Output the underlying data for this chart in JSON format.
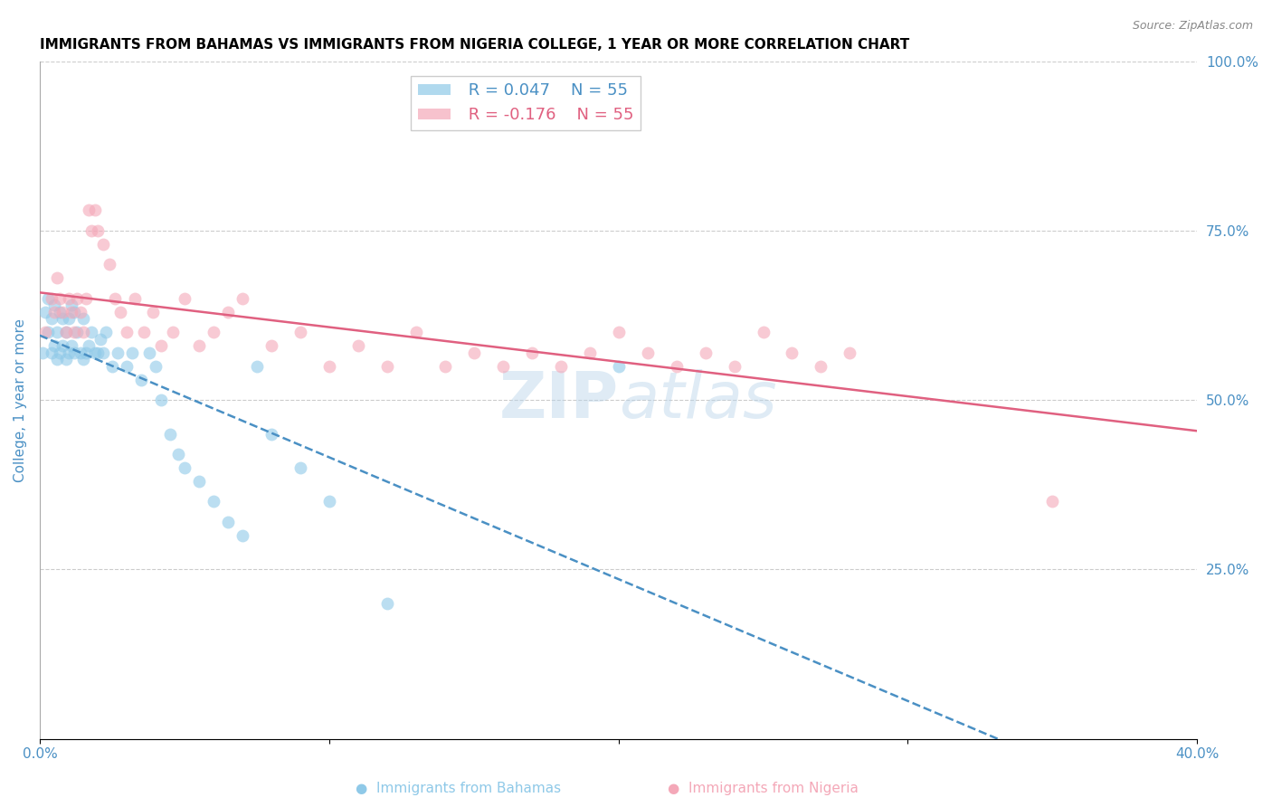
{
  "title": "IMMIGRANTS FROM BAHAMAS VS IMMIGRANTS FROM NIGERIA COLLEGE, 1 YEAR OR MORE CORRELATION CHART",
  "source": "Source: ZipAtlas.com",
  "ylabel": "College, 1 year or more",
  "xlim": [
    0.0,
    0.4
  ],
  "ylim": [
    0.0,
    1.0
  ],
  "xticks": [
    0.0,
    0.1,
    0.2,
    0.3,
    0.4
  ],
  "xticklabels": [
    "0.0%",
    "",
    "",
    "",
    "40.0%"
  ],
  "yticks_right": [
    0.0,
    0.25,
    0.5,
    0.75,
    1.0
  ],
  "ytick_right_labels": [
    "",
    "25.0%",
    "50.0%",
    "75.0%",
    "100.0%"
  ],
  "legend_r1": "R = 0.047",
  "legend_n1": "N = 55",
  "legend_r2": "R = -0.176",
  "legend_n2": "N = 55",
  "color_blue": "#8fc9e8",
  "color_pink": "#f4a8b8",
  "color_blue_line": "#4a90c4",
  "color_pink_line": "#e06080",
  "color_axis_label": "#4a90c4",
  "watermark": "ZIPatlas",
  "blue_x": [
    0.001,
    0.002,
    0.003,
    0.003,
    0.004,
    0.004,
    0.005,
    0.005,
    0.006,
    0.006,
    0.007,
    0.007,
    0.008,
    0.008,
    0.009,
    0.009,
    0.01,
    0.01,
    0.011,
    0.011,
    0.012,
    0.012,
    0.013,
    0.014,
    0.015,
    0.015,
    0.016,
    0.017,
    0.018,
    0.019,
    0.02,
    0.021,
    0.022,
    0.023,
    0.025,
    0.027,
    0.03,
    0.032,
    0.035,
    0.038,
    0.04,
    0.042,
    0.045,
    0.048,
    0.05,
    0.055,
    0.06,
    0.065,
    0.07,
    0.075,
    0.08,
    0.09,
    0.1,
    0.12,
    0.2
  ],
  "blue_y": [
    0.57,
    0.63,
    0.6,
    0.65,
    0.57,
    0.62,
    0.58,
    0.64,
    0.56,
    0.6,
    0.57,
    0.63,
    0.58,
    0.62,
    0.56,
    0.6,
    0.57,
    0.62,
    0.58,
    0.64,
    0.57,
    0.63,
    0.6,
    0.57,
    0.56,
    0.62,
    0.57,
    0.58,
    0.6,
    0.57,
    0.57,
    0.59,
    0.57,
    0.6,
    0.55,
    0.57,
    0.55,
    0.57,
    0.53,
    0.57,
    0.55,
    0.5,
    0.45,
    0.42,
    0.4,
    0.38,
    0.35,
    0.32,
    0.3,
    0.55,
    0.45,
    0.4,
    0.35,
    0.2,
    0.55
  ],
  "pink_x": [
    0.002,
    0.004,
    0.005,
    0.006,
    0.007,
    0.008,
    0.009,
    0.01,
    0.011,
    0.012,
    0.013,
    0.014,
    0.015,
    0.016,
    0.017,
    0.018,
    0.019,
    0.02,
    0.022,
    0.024,
    0.026,
    0.028,
    0.03,
    0.033,
    0.036,
    0.039,
    0.042,
    0.046,
    0.05,
    0.055,
    0.06,
    0.065,
    0.07,
    0.08,
    0.09,
    0.1,
    0.11,
    0.12,
    0.13,
    0.14,
    0.15,
    0.16,
    0.17,
    0.18,
    0.19,
    0.2,
    0.21,
    0.22,
    0.23,
    0.24,
    0.25,
    0.26,
    0.27,
    0.28,
    0.35
  ],
  "pink_y": [
    0.6,
    0.65,
    0.63,
    0.68,
    0.65,
    0.63,
    0.6,
    0.65,
    0.63,
    0.6,
    0.65,
    0.63,
    0.6,
    0.65,
    0.78,
    0.75,
    0.78,
    0.75,
    0.73,
    0.7,
    0.65,
    0.63,
    0.6,
    0.65,
    0.6,
    0.63,
    0.58,
    0.6,
    0.65,
    0.58,
    0.6,
    0.63,
    0.65,
    0.58,
    0.6,
    0.55,
    0.58,
    0.55,
    0.6,
    0.55,
    0.57,
    0.55,
    0.57,
    0.55,
    0.57,
    0.6,
    0.57,
    0.55,
    0.57,
    0.55,
    0.6,
    0.57,
    0.55,
    0.57,
    0.35
  ]
}
